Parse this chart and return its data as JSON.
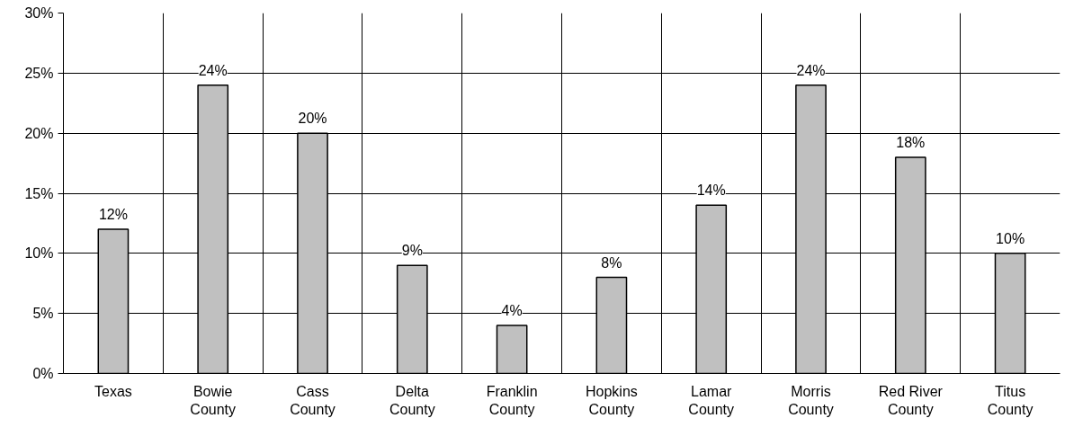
{
  "chart_data": {
    "type": "bar",
    "categories": [
      "Texas",
      "Bowie County",
      "Cass County",
      "Delta County",
      "Franklin County",
      "Hopkins County",
      "Lamar County",
      "Morris County",
      "Red River County",
      "Titus County"
    ],
    "values": [
      12,
      24,
      20,
      9,
      4,
      8,
      14,
      24,
      18,
      10
    ],
    "value_labels": [
      "12%",
      "24%",
      "20%",
      "9%",
      "4%",
      "8%",
      "14%",
      "24%",
      "18%",
      "10%"
    ],
    "color": "#c0c0c0",
    "ylim": [
      0,
      30
    ],
    "yticks": [
      {
        "value": 0,
        "label": "0%"
      },
      {
        "value": 5,
        "label": "5%"
      },
      {
        "value": 10,
        "label": "10%"
      },
      {
        "value": 15,
        "label": "15%"
      },
      {
        "value": 20,
        "label": "20%"
      },
      {
        "value": 25,
        "label": "25%"
      },
      {
        "value": 30,
        "label": "30%"
      }
    ],
    "grid": true
  }
}
